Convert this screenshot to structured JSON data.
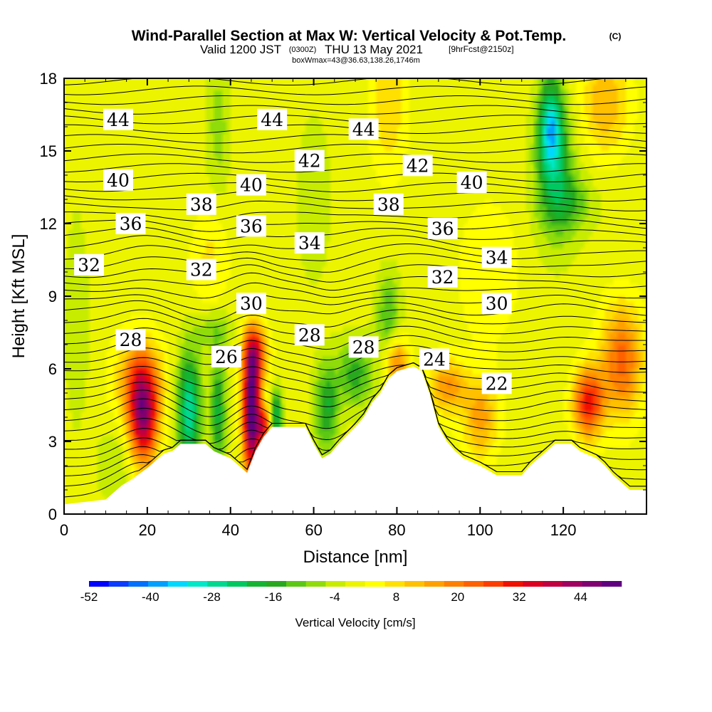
{
  "title": {
    "main": "Wind-Parallel Section at Max W: Vertical Velocity & Pot.Temp.",
    "copyright": "(C)",
    "valid_prefix": "Valid 1200 JST",
    "valid_utc": "(0300Z)",
    "valid_date": "THU 13 May 2021",
    "forecast": "[9hrFcst@2150z]",
    "box_info": "boxWmax=43@36.63,138.26,1746m"
  },
  "chart_data": {
    "type": "heatmap",
    "title": "Wind-Parallel Section at Max W: Vertical Velocity & Pot.Temp.",
    "xlabel": "Distance [nm]",
    "ylabel": "Height [Kft MSL]",
    "xlim": [
      0,
      140
    ],
    "ylim": [
      0,
      18
    ],
    "x_ticks": [
      0,
      20,
      40,
      60,
      80,
      100,
      120
    ],
    "y_ticks": [
      0,
      3,
      6,
      9,
      12,
      15,
      18
    ],
    "colorbar": {
      "label": "Vertical Velocity [cm/s]",
      "levels": [
        -52,
        -48,
        -44,
        -40,
        -36,
        -32,
        -28,
        -24,
        -20,
        -16,
        -12,
        -8,
        -4,
        0,
        4,
        8,
        12,
        16,
        20,
        24,
        28,
        32,
        36,
        40,
        44,
        48,
        52
      ],
      "tick_labels": [
        -52,
        -40,
        -28,
        -16,
        -4,
        8,
        20,
        32,
        44
      ],
      "colors": [
        "#0000ff",
        "#0a3cff",
        "#0070ff",
        "#00a0ff",
        "#00d8ff",
        "#00e8c8",
        "#00d890",
        "#00c860",
        "#14b432",
        "#28a81e",
        "#5cc814",
        "#90dc0a",
        "#c8ec00",
        "#ecf400",
        "#ffff00",
        "#ffe000",
        "#ffc000",
        "#ffa000",
        "#ff8000",
        "#ff6000",
        "#ff3c00",
        "#f01000",
        "#dc0020",
        "#c00040",
        "#a00060",
        "#800070",
        "#600080"
      ]
    },
    "contour_field": "Potential temperature",
    "contour_labels": [
      {
        "label": "44",
        "x": 13,
        "y": 16.3
      },
      {
        "label": "44",
        "x": 50,
        "y": 16.3
      },
      {
        "label": "44",
        "x": 72,
        "y": 15.9
      },
      {
        "label": "42",
        "x": 59,
        "y": 14.6
      },
      {
        "label": "42",
        "x": 85,
        "y": 14.4
      },
      {
        "label": "40",
        "x": 13,
        "y": 13.8
      },
      {
        "label": "40",
        "x": 45,
        "y": 13.6
      },
      {
        "label": "40",
        "x": 98,
        "y": 13.7
      },
      {
        "label": "38",
        "x": 33,
        "y": 12.8
      },
      {
        "label": "38",
        "x": 78,
        "y": 12.8
      },
      {
        "label": "36",
        "x": 16,
        "y": 12.0
      },
      {
        "label": "36",
        "x": 45,
        "y": 11.9
      },
      {
        "label": "36",
        "x": 91,
        "y": 11.8
      },
      {
        "label": "34",
        "x": 59,
        "y": 11.2
      },
      {
        "label": "34",
        "x": 104,
        "y": 10.6
      },
      {
        "label": "32",
        "x": 6,
        "y": 10.3
      },
      {
        "label": "32",
        "x": 33,
        "y": 10.1
      },
      {
        "label": "32",
        "x": 91,
        "y": 9.8
      },
      {
        "label": "30",
        "x": 45,
        "y": 8.7
      },
      {
        "label": "30",
        "x": 104,
        "y": 8.7
      },
      {
        "label": "28",
        "x": 16,
        "y": 7.2
      },
      {
        "label": "28",
        "x": 59,
        "y": 7.4
      },
      {
        "label": "28",
        "x": 72,
        "y": 6.9
      },
      {
        "label": "26",
        "x": 39,
        "y": 6.5
      },
      {
        "label": "24",
        "x": 89,
        "y": 6.4
      },
      {
        "label": "22",
        "x": 104,
        "y": 5.4
      }
    ],
    "terrain_height_kft": [
      [
        0,
        0.4
      ],
      [
        10,
        0.6
      ],
      [
        12,
        0.9
      ],
      [
        14,
        1.2
      ],
      [
        16,
        1.4
      ],
      [
        20,
        1.9
      ],
      [
        22,
        2.2
      ],
      [
        24,
        2.5
      ],
      [
        26,
        2.6
      ],
      [
        28,
        2.9
      ],
      [
        34,
        2.9
      ],
      [
        36,
        2.6
      ],
      [
        40,
        2.3
      ],
      [
        42,
        2.0
      ],
      [
        44,
        1.7
      ],
      [
        46,
        2.6
      ],
      [
        48,
        3.2
      ],
      [
        50,
        3.6
      ],
      [
        58,
        3.6
      ],
      [
        60,
        2.9
      ],
      [
        62,
        2.3
      ],
      [
        64,
        2.5
      ],
      [
        66,
        2.9
      ],
      [
        70,
        3.6
      ],
      [
        72,
        4.0
      ],
      [
        74,
        4.6
      ],
      [
        76,
        5.0
      ],
      [
        78,
        5.6
      ],
      [
        80,
        5.9
      ],
      [
        84,
        6.1
      ],
      [
        86,
        5.9
      ],
      [
        88,
        4.9
      ],
      [
        90,
        3.6
      ],
      [
        92,
        3.0
      ],
      [
        94,
        2.6
      ],
      [
        96,
        2.3
      ],
      [
        100,
        2.0
      ],
      [
        104,
        1.6
      ],
      [
        110,
        1.6
      ],
      [
        112,
        2.0
      ],
      [
        114,
        2.3
      ],
      [
        116,
        2.6
      ],
      [
        118,
        2.9
      ],
      [
        122,
        2.9
      ],
      [
        124,
        2.6
      ],
      [
        128,
        2.3
      ],
      [
        130,
        2.0
      ],
      [
        132,
        1.6
      ],
      [
        134,
        1.3
      ],
      [
        136,
        1.0
      ],
      [
        140,
        1.0
      ]
    ],
    "vertical_velocity_features_cm_s": [
      {
        "x": 0,
        "z": 0,
        "sx": 300,
        "sz": 300,
        "w": 2
      },
      {
        "x": 19,
        "z": 4.0,
        "sx": 2.4,
        "sz": 1.4,
        "w": 42
      },
      {
        "x": 18,
        "z": 5.6,
        "sx": 4.0,
        "sz": 1.2,
        "w": 18
      },
      {
        "x": 45,
        "z": 4.2,
        "sx": 1.4,
        "sz": 1.8,
        "w": 58
      },
      {
        "x": 46,
        "z": 6.6,
        "sx": 2.0,
        "sz": 0.8,
        "w": 28
      },
      {
        "x": 30,
        "z": 4.3,
        "sx": 2.0,
        "sz": 1.7,
        "w": -30
      },
      {
        "x": 37,
        "z": 4.2,
        "sx": 1.3,
        "sz": 1.6,
        "w": -20
      },
      {
        "x": 51,
        "z": 4.0,
        "sx": 1.0,
        "sz": 0.8,
        "w": -24
      },
      {
        "x": 63,
        "z": 4.4,
        "sx": 2.0,
        "sz": 1.3,
        "w": -18
      },
      {
        "x": 70,
        "z": 5.8,
        "sx": 3.0,
        "sz": 1.0,
        "w": -16
      },
      {
        "x": 78,
        "z": 8.2,
        "sx": 2.0,
        "sz": 1.2,
        "w": -14
      },
      {
        "x": 36,
        "z": 7.6,
        "sx": 3.0,
        "sz": 0.6,
        "w": -10
      },
      {
        "x": 117,
        "z": 16.0,
        "sx": 2.0,
        "sz": 1.4,
        "w": -30
      },
      {
        "x": 118,
        "z": 14.0,
        "sx": 3.5,
        "sz": 2.0,
        "w": -16
      },
      {
        "x": 122,
        "z": 12.8,
        "sx": 4.0,
        "sz": 0.8,
        "w": -10
      },
      {
        "x": 126,
        "z": 4.6,
        "sx": 2.5,
        "sz": 1.0,
        "w": 32
      },
      {
        "x": 134,
        "z": 6.3,
        "sx": 3.5,
        "sz": 1.6,
        "w": 24
      },
      {
        "x": 100,
        "z": 4.0,
        "sx": 3.0,
        "sz": 1.2,
        "w": 16
      },
      {
        "x": 92,
        "z": 5.3,
        "sx": 3.0,
        "sz": 0.8,
        "w": 18
      },
      {
        "x": 80,
        "z": 6.2,
        "sx": 2.0,
        "sz": 0.8,
        "w": 20
      },
      {
        "x": 78,
        "z": 17.0,
        "sx": 3.0,
        "sz": 2.0,
        "w": 10
      },
      {
        "x": 130,
        "z": 17.0,
        "sx": 4.0,
        "sz": 1.5,
        "w": 14
      },
      {
        "x": 60,
        "z": 13.0,
        "sx": 3.0,
        "sz": 2.5,
        "w": -5
      },
      {
        "x": 102,
        "z": 10.0,
        "sx": 5.0,
        "sz": 2.0,
        "w": 6
      },
      {
        "x": 35,
        "z": 10.5,
        "sx": 3.0,
        "sz": 1.5,
        "w": 7
      },
      {
        "x": 37,
        "z": 16.0,
        "sx": 2.0,
        "sz": 2.0,
        "w": -8
      },
      {
        "x": 3,
        "z": 8.0,
        "sx": 2.0,
        "sz": 3.0,
        "w": -6
      },
      {
        "x": 48,
        "z": 3.6,
        "sx": 1.2,
        "sz": 0.6,
        "w": 30
      },
      {
        "x": 12,
        "z": 2.0,
        "sx": 3.0,
        "sz": 1.0,
        "w": -6
      }
    ]
  }
}
